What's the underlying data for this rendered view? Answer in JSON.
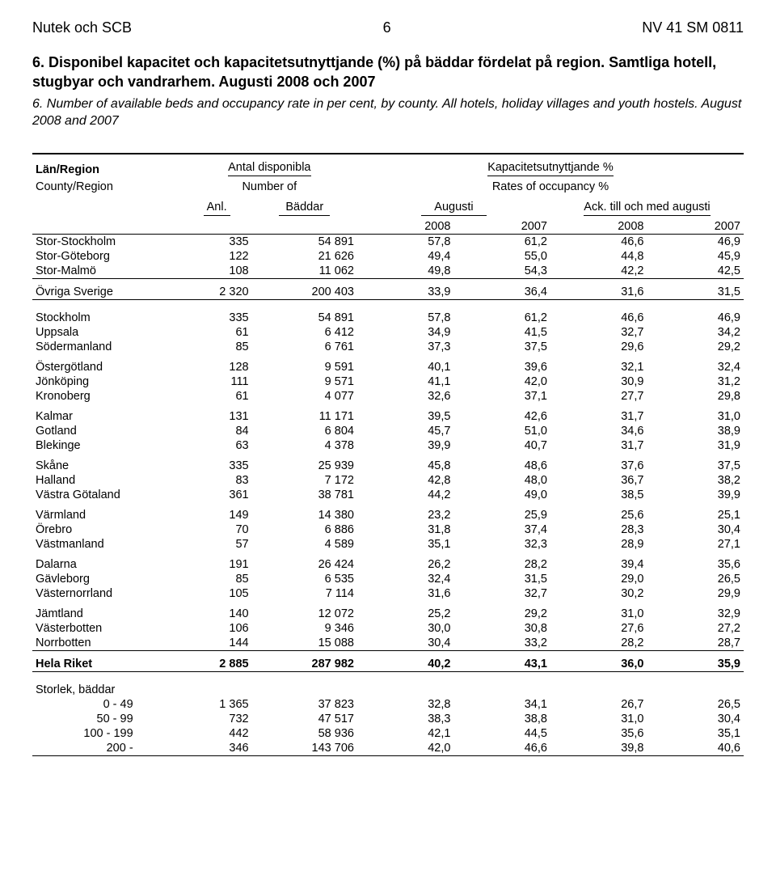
{
  "header": {
    "left": "Nutek och SCB",
    "page": "6",
    "right": "NV 41 SM 0811"
  },
  "title": {
    "sv": "6. Disponibel kapacitet och kapacitetsutnyttjande (%) på bäddar fördelat på region. Samtliga hotell, stugbyar och vandrarhem. Augusti 2008 och 2007",
    "en": "6. Number of available beds and occupancy rate in per cent, by county. All hotels, holiday villages and youth hostels. August 2008 and 2007"
  },
  "thead": {
    "lan": "Län/Region",
    "county": "County/Region",
    "antal": "Antal disponibla",
    "number": "Number of",
    "kap": "Kapacitetsutnyttjande %",
    "rates": "Rates of occupancy %",
    "anl": "Anl.",
    "baddar": "Bäddar",
    "augusti": "Augusti",
    "ack": "Ack. till och med augusti",
    "y08": "2008",
    "y07": "2007"
  },
  "groups": [
    {
      "rows": [
        {
          "name": "Stor-Stockholm",
          "anl": "335",
          "bed": "54 891",
          "a08": "57,8",
          "a07": "61,2",
          "c08": "46,6",
          "c07": "46,9"
        },
        {
          "name": "Stor-Göteborg",
          "anl": "122",
          "bed": "21 626",
          "a08": "49,4",
          "a07": "55,0",
          "c08": "44,8",
          "c07": "45,9"
        },
        {
          "name": "Stor-Malmö",
          "anl": "108",
          "bed": "11 062",
          "a08": "49,8",
          "a07": "54,3",
          "c08": "42,2",
          "c07": "42,5"
        }
      ],
      "ruleAfter": true
    },
    {
      "rows": [
        {
          "name": "Övriga Sverige",
          "anl": "2 320",
          "bed": "200 403",
          "a08": "33,9",
          "a07": "36,4",
          "c08": "31,6",
          "c07": "31,5"
        }
      ],
      "ruleAfter": true,
      "bigGapAfter": true
    },
    {
      "rows": [
        {
          "name": "Stockholm",
          "anl": "335",
          "bed": "54 891",
          "a08": "57,8",
          "a07": "61,2",
          "c08": "46,6",
          "c07": "46,9"
        },
        {
          "name": "Uppsala",
          "anl": "61",
          "bed": "6 412",
          "a08": "34,9",
          "a07": "41,5",
          "c08": "32,7",
          "c07": "34,2"
        },
        {
          "name": "Södermanland",
          "anl": "85",
          "bed": "6 761",
          "a08": "37,3",
          "a07": "37,5",
          "c08": "29,6",
          "c07": "29,2"
        }
      ]
    },
    {
      "rows": [
        {
          "name": "Östergötland",
          "anl": "128",
          "bed": "9 591",
          "a08": "40,1",
          "a07": "39,6",
          "c08": "32,1",
          "c07": "32,4"
        },
        {
          "name": "Jönköping",
          "anl": "111",
          "bed": "9 571",
          "a08": "41,1",
          "a07": "42,0",
          "c08": "30,9",
          "c07": "31,2"
        },
        {
          "name": "Kronoberg",
          "anl": "61",
          "bed": "4 077",
          "a08": "32,6",
          "a07": "37,1",
          "c08": "27,7",
          "c07": "29,8"
        }
      ]
    },
    {
      "rows": [
        {
          "name": "Kalmar",
          "anl": "131",
          "bed": "11 171",
          "a08": "39,5",
          "a07": "42,6",
          "c08": "31,7",
          "c07": "31,0"
        },
        {
          "name": "Gotland",
          "anl": "84",
          "bed": "6 804",
          "a08": "45,7",
          "a07": "51,0",
          "c08": "34,6",
          "c07": "38,9"
        },
        {
          "name": "Blekinge",
          "anl": "63",
          "bed": "4 378",
          "a08": "39,9",
          "a07": "40,7",
          "c08": "31,7",
          "c07": "31,9"
        }
      ]
    },
    {
      "rows": [
        {
          "name": "Skåne",
          "anl": "335",
          "bed": "25 939",
          "a08": "45,8",
          "a07": "48,6",
          "c08": "37,6",
          "c07": "37,5"
        },
        {
          "name": "Halland",
          "anl": "83",
          "bed": "7 172",
          "a08": "42,8",
          "a07": "48,0",
          "c08": "36,7",
          "c07": "38,2"
        },
        {
          "name": "Västra Götaland",
          "anl": "361",
          "bed": "38 781",
          "a08": "44,2",
          "a07": "49,0",
          "c08": "38,5",
          "c07": "39,9"
        }
      ]
    },
    {
      "rows": [
        {
          "name": "Värmland",
          "anl": "149",
          "bed": "14 380",
          "a08": "23,2",
          "a07": "25,9",
          "c08": "25,6",
          "c07": "25,1"
        },
        {
          "name": "Örebro",
          "anl": "70",
          "bed": "6 886",
          "a08": "31,8",
          "a07": "37,4",
          "c08": "28,3",
          "c07": "30,4"
        },
        {
          "name": "Västmanland",
          "anl": "57",
          "bed": "4 589",
          "a08": "35,1",
          "a07": "32,3",
          "c08": "28,9",
          "c07": "27,1"
        }
      ]
    },
    {
      "rows": [
        {
          "name": "Dalarna",
          "anl": "191",
          "bed": "26 424",
          "a08": "26,2",
          "a07": "28,2",
          "c08": "39,4",
          "c07": "35,6"
        },
        {
          "name": "Gävleborg",
          "anl": "85",
          "bed": "6 535",
          "a08": "32,4",
          "a07": "31,5",
          "c08": "29,0",
          "c07": "26,5"
        },
        {
          "name": "Västernorrland",
          "anl": "105",
          "bed": "7 114",
          "a08": "31,6",
          "a07": "32,7",
          "c08": "30,2",
          "c07": "29,9"
        }
      ]
    },
    {
      "rows": [
        {
          "name": "Jämtland",
          "anl": "140",
          "bed": "12 072",
          "a08": "25,2",
          "a07": "29,2",
          "c08": "31,0",
          "c07": "32,9"
        },
        {
          "name": "Västerbotten",
          "anl": "106",
          "bed": "9 346",
          "a08": "30,0",
          "a07": "30,8",
          "c08": "27,6",
          "c07": "27,2"
        },
        {
          "name": "Norrbotten",
          "anl": "144",
          "bed": "15 088",
          "a08": "30,4",
          "a07": "33,2",
          "c08": "28,2",
          "c07": "28,7"
        }
      ],
      "ruleAfter": true
    },
    {
      "bold": true,
      "rows": [
        {
          "name": "Hela Riket",
          "anl": "2 885",
          "bed": "287 982",
          "a08": "40,2",
          "a07": "43,1",
          "c08": "36,0",
          "c07": "35,9"
        }
      ],
      "ruleAfter": true,
      "bigGapAfter": true
    }
  ],
  "size": {
    "heading": "Storlek, bäddar",
    "rows": [
      {
        "name": "0 - 49",
        "anl": "1 365",
        "bed": "37 823",
        "a08": "32,8",
        "a07": "34,1",
        "c08": "26,7",
        "c07": "26,5"
      },
      {
        "name": "50 - 99",
        "anl": "732",
        "bed": "47 517",
        "a08": "38,3",
        "a07": "38,8",
        "c08": "31,0",
        "c07": "30,4"
      },
      {
        "name": "100 - 199",
        "anl": "442",
        "bed": "58 936",
        "a08": "42,1",
        "a07": "44,5",
        "c08": "35,6",
        "c07": "35,1"
      },
      {
        "name": "200 -",
        "anl": "346",
        "bed": "143 706",
        "a08": "42,0",
        "a07": "46,6",
        "c08": "39,8",
        "c07": "40,6"
      }
    ]
  }
}
